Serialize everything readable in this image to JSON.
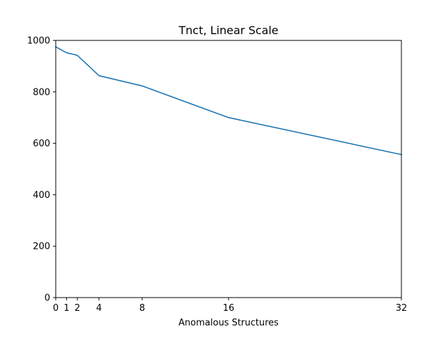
{
  "chart_data": {
    "type": "line",
    "title": "Tnct, Linear Scale",
    "xlabel": "Anomalous Structures",
    "ylabel": "",
    "xlim": [
      0,
      32
    ],
    "ylim": [
      0,
      1000
    ],
    "x_ticks": [
      0,
      1,
      2,
      4,
      8,
      16,
      32
    ],
    "y_ticks": [
      0,
      200,
      400,
      600,
      800,
      1000
    ],
    "grid": false,
    "legend": "none",
    "series": [
      {
        "color": "#1f77b4",
        "x": [
          0,
          1,
          2,
          4,
          8,
          16,
          32
        ],
        "y": [
          975,
          952,
          942,
          863,
          823,
          700,
          556
        ]
      }
    ]
  }
}
